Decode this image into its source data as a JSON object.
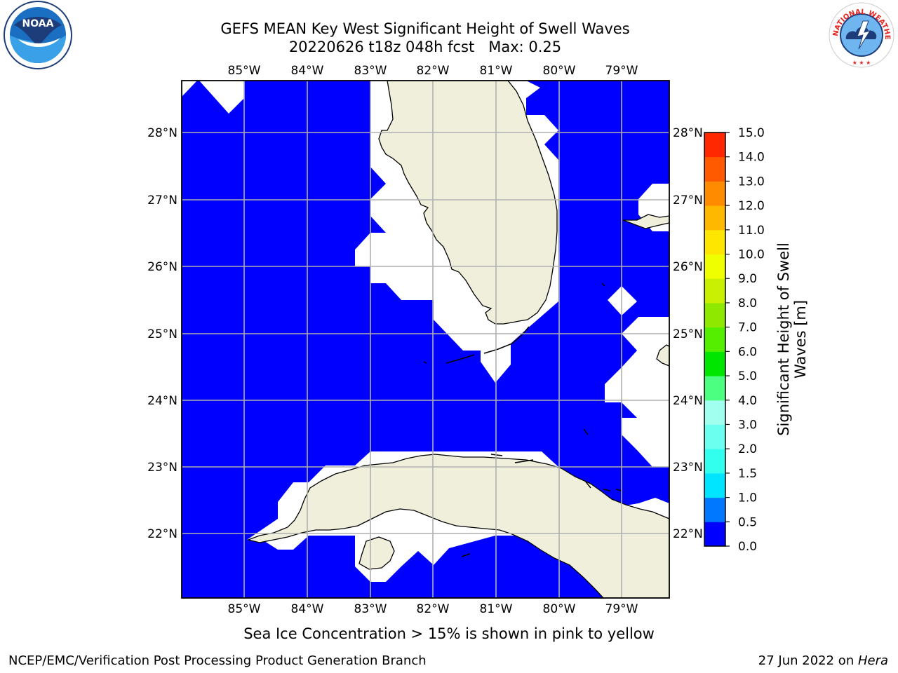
{
  "title": {
    "line1": "GEFS MEAN Key West Significant Height of Swell Waves",
    "line2": "20220626 t18z 048h fcst   Max: 0.25"
  },
  "map": {
    "lon_labels": [
      "85°W",
      "84°W",
      "83°W",
      "82°W",
      "81°W",
      "80°W",
      "79°W"
    ],
    "lat_labels": [
      "28°N",
      "27°N",
      "26°N",
      "25°N",
      "24°N",
      "23°N",
      "22°N"
    ],
    "extent": {
      "lon": [
        -86.0,
        -78.3
      ],
      "lat": [
        21.0,
        28.8
      ]
    }
  },
  "colors": {
    "ocean_field": "#0000ff",
    "land": "#efefdc",
    "no_data": "#ffffff",
    "gridline": "#b0b0b0"
  },
  "colorbar": {
    "label_line1": "Significant Height of Swell",
    "label_line2": "Waves [m]",
    "ticks": [
      "0.0",
      "0.5",
      "1.0",
      "1.5",
      "2.0",
      "3.0",
      "4.0",
      "5.0",
      "6.0",
      "7.0",
      "8.0",
      "9.0",
      "10.0",
      "11.0",
      "12.0",
      "13.0",
      "14.0",
      "15.0"
    ],
    "colors": [
      "#0000ff",
      "#0078ff",
      "#00e5ff",
      "#33ffee",
      "#6affee",
      "#a0ffee",
      "#4dff80",
      "#00e600",
      "#55ee00",
      "#8fe800",
      "#c8f000",
      "#f0ff00",
      "#ffe600",
      "#ffb800",
      "#ff8c00",
      "#ff5a00",
      "#ff2800"
    ]
  },
  "logos": {
    "noaa_text": "NOAA",
    "nws_text": "NATIONAL WEATHER SERVICE"
  },
  "caption": "Sea Ice Concentration > 15% is shown in pink to yellow",
  "footer": {
    "left": "NCEP/EMC/Verification Post Processing Product Generation Branch",
    "right_date": "27 Jun 2022 on ",
    "right_host": "Hera"
  }
}
